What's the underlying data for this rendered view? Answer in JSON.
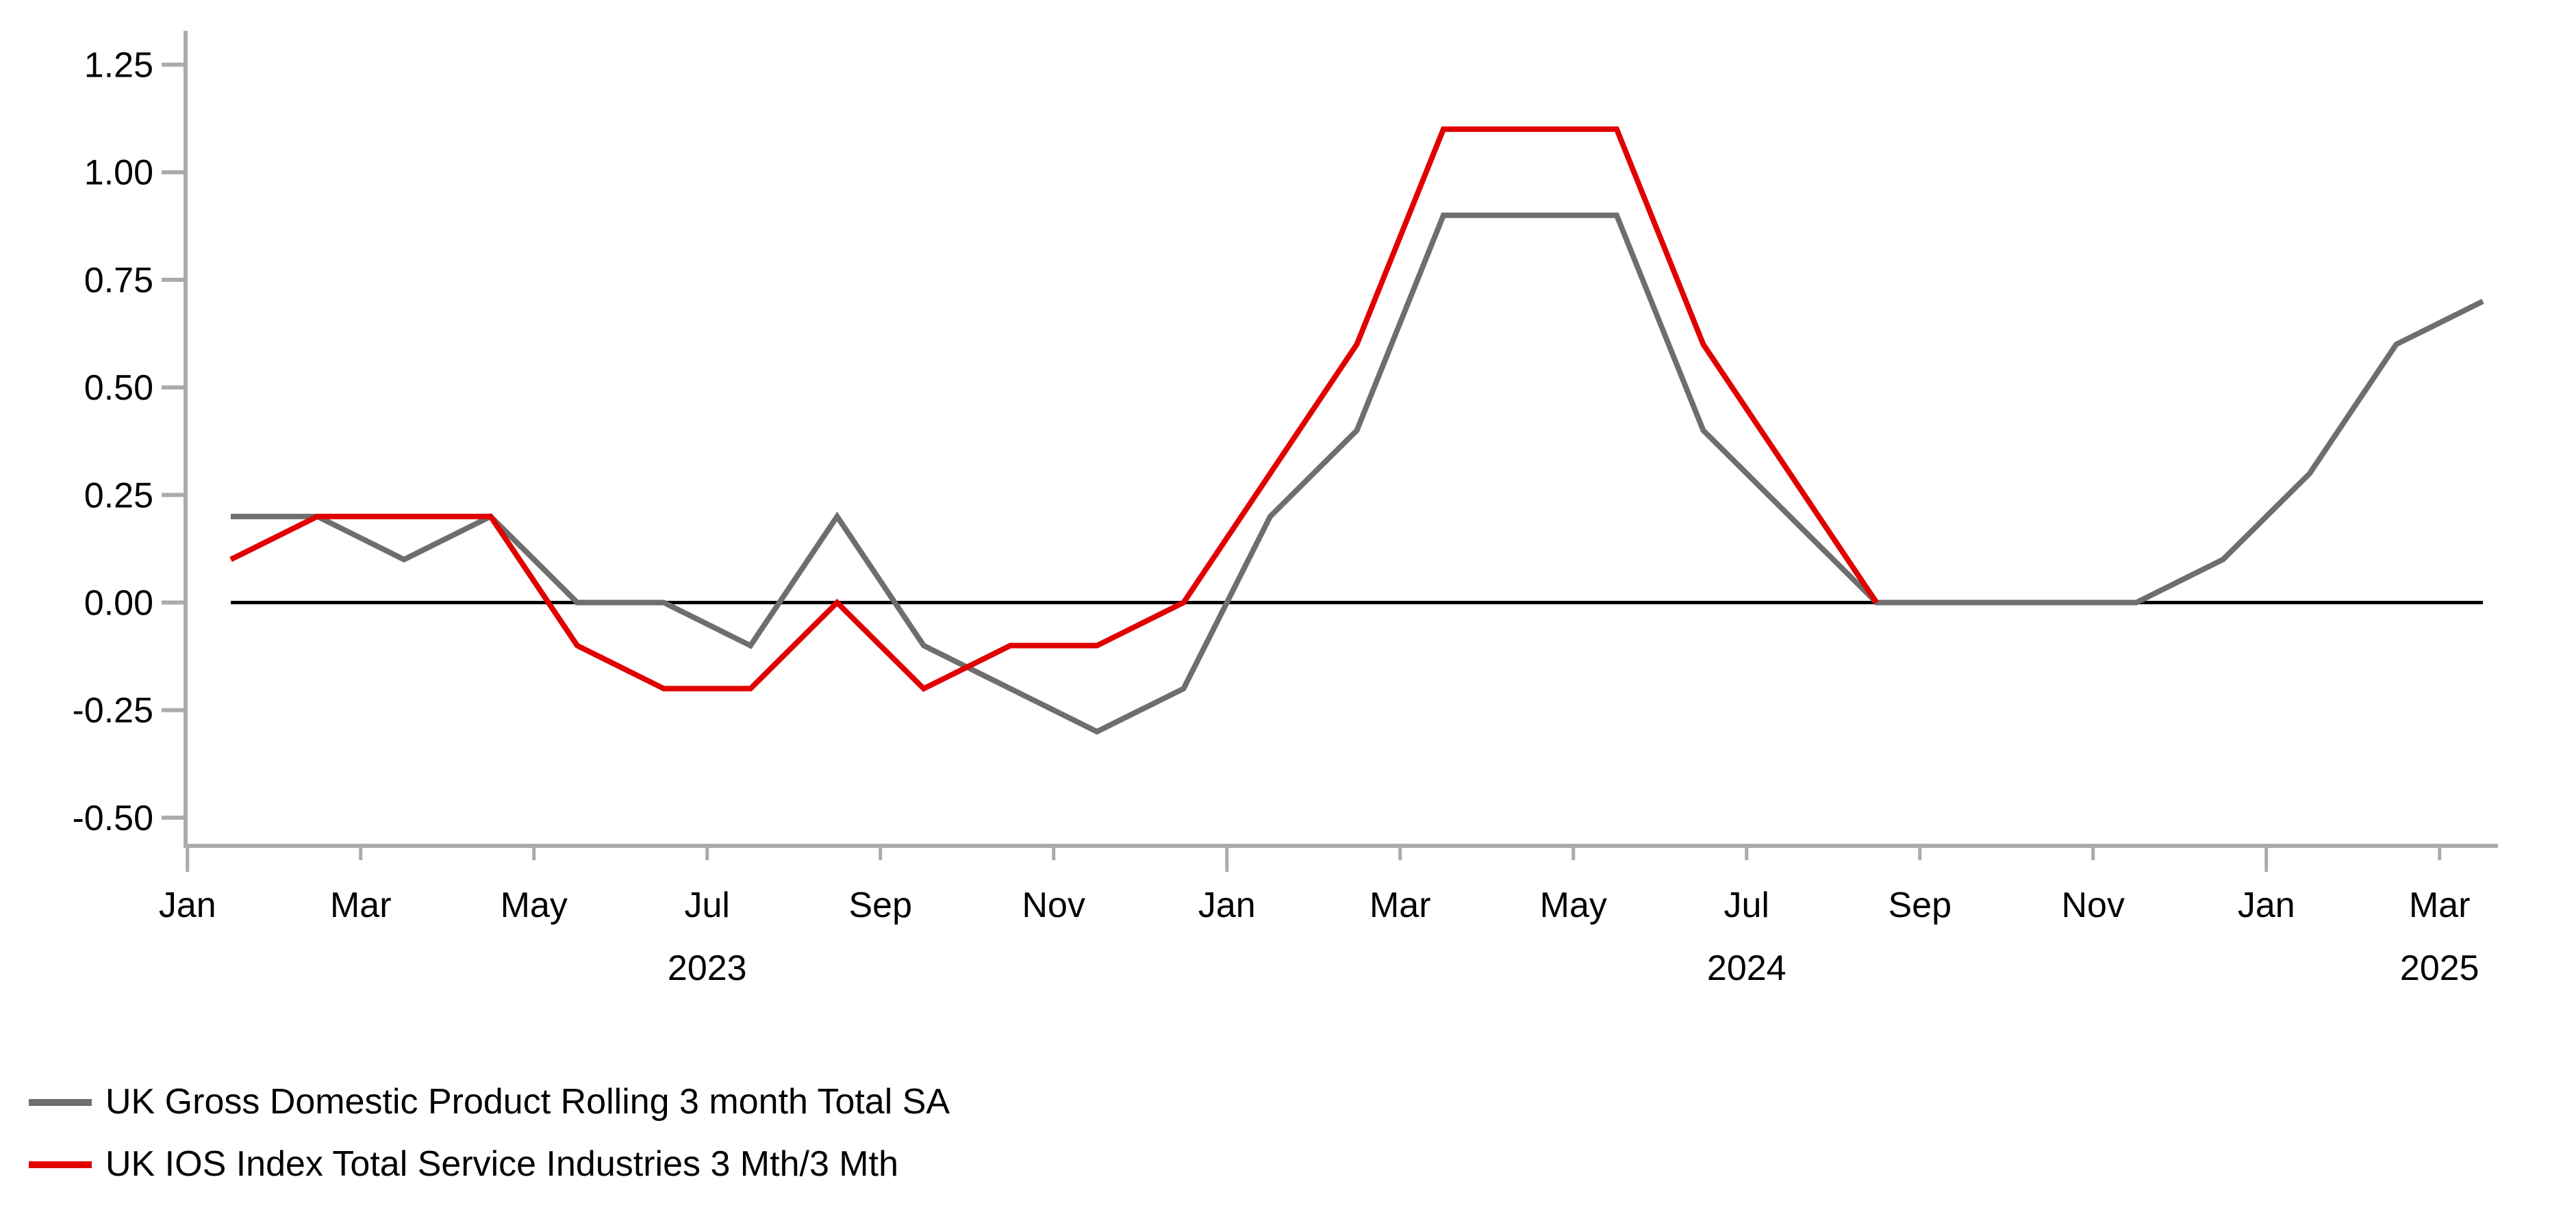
{
  "chart_data": {
    "type": "line",
    "title": "",
    "xlabel": "",
    "ylabel": "",
    "grid": false,
    "legend_position": "bottom-left",
    "ylim": [
      -0.5,
      1.25
    ],
    "x": [
      "Jan 2023",
      "Feb 2023",
      "Mar 2023",
      "Apr 2023",
      "May 2023",
      "Jun 2023",
      "Jul 2023",
      "Aug 2023",
      "Sep 2023",
      "Oct 2023",
      "Nov 2023",
      "Dec 2023",
      "Jan 2024",
      "Feb 2024",
      "Mar 2024",
      "Apr 2024",
      "May 2024",
      "Jun 2024",
      "Jul 2024",
      "Aug 2024",
      "Sep 2024",
      "Oct 2024",
      "Nov 2024",
      "Dec 2024",
      "Jan 2025",
      "Feb 2025",
      "Mar 2025"
    ],
    "series": [
      {
        "name": "UK Gross Domestic Product Rolling 3 month Total SA",
        "color": "#6e6e6e",
        "values": [
          0.2,
          0.2,
          0.1,
          0.2,
          0.0,
          0.0,
          -0.1,
          0.2,
          -0.1,
          -0.2,
          -0.3,
          -0.2,
          0.2,
          0.4,
          0.9,
          0.9,
          0.9,
          0.4,
          0.2,
          0.0,
          0.0,
          0.0,
          0.0,
          0.1,
          0.3,
          0.6,
          0.7
        ]
      },
      {
        "name": "UK IOS Index Total Service Industries 3 Mth/3 Mth",
        "color": "#e10000",
        "values": [
          0.1,
          0.2,
          0.2,
          0.2,
          -0.1,
          -0.2,
          -0.2,
          0.0,
          -0.2,
          -0.1,
          -0.1,
          0.0,
          0.3,
          0.6,
          1.1,
          1.1,
          1.1,
          0.6,
          0.3,
          0.0,
          null,
          null,
          null,
          null,
          null,
          null,
          null
        ]
      }
    ],
    "y_axis": {
      "ticks": [
        {
          "label": "1.25",
          "value": 1.25
        },
        {
          "label": "1.00",
          "value": 1.0
        },
        {
          "label": "0.75",
          "value": 0.75
        },
        {
          "label": "0.50",
          "value": 0.5
        },
        {
          "label": "0.25",
          "value": 0.25
        },
        {
          "label": "0.00",
          "value": 0.0
        },
        {
          "label": "-0.25",
          "value": -0.25
        },
        {
          "label": "-0.50",
          "value": -0.5
        }
      ]
    },
    "x_axis": {
      "ticks": [
        {
          "label": "Jan",
          "major": true
        },
        {
          "label": "Mar",
          "major": false
        },
        {
          "label": "May",
          "major": false
        },
        {
          "label": "Jul",
          "major": false
        },
        {
          "label": "Sep",
          "major": false
        },
        {
          "label": "Nov",
          "major": false
        },
        {
          "label": "Jan",
          "major": true
        },
        {
          "label": "Mar",
          "major": false
        },
        {
          "label": "May",
          "major": false
        },
        {
          "label": "Jul",
          "major": false
        },
        {
          "label": "Sep",
          "major": false
        },
        {
          "label": "Nov",
          "major": false
        },
        {
          "label": "Jan",
          "major": true
        },
        {
          "label": "Mar",
          "major": false
        }
      ],
      "year_labels": [
        {
          "text": "2023",
          "tick_index": 3
        },
        {
          "text": "2024",
          "tick_index": 9
        },
        {
          "text": "2025",
          "tick_index": 13
        }
      ]
    },
    "zero_line": true,
    "colors": {
      "axis": "#ababab",
      "zero_line": "#000000",
      "text": "#000000",
      "background": "#ffffff"
    }
  }
}
